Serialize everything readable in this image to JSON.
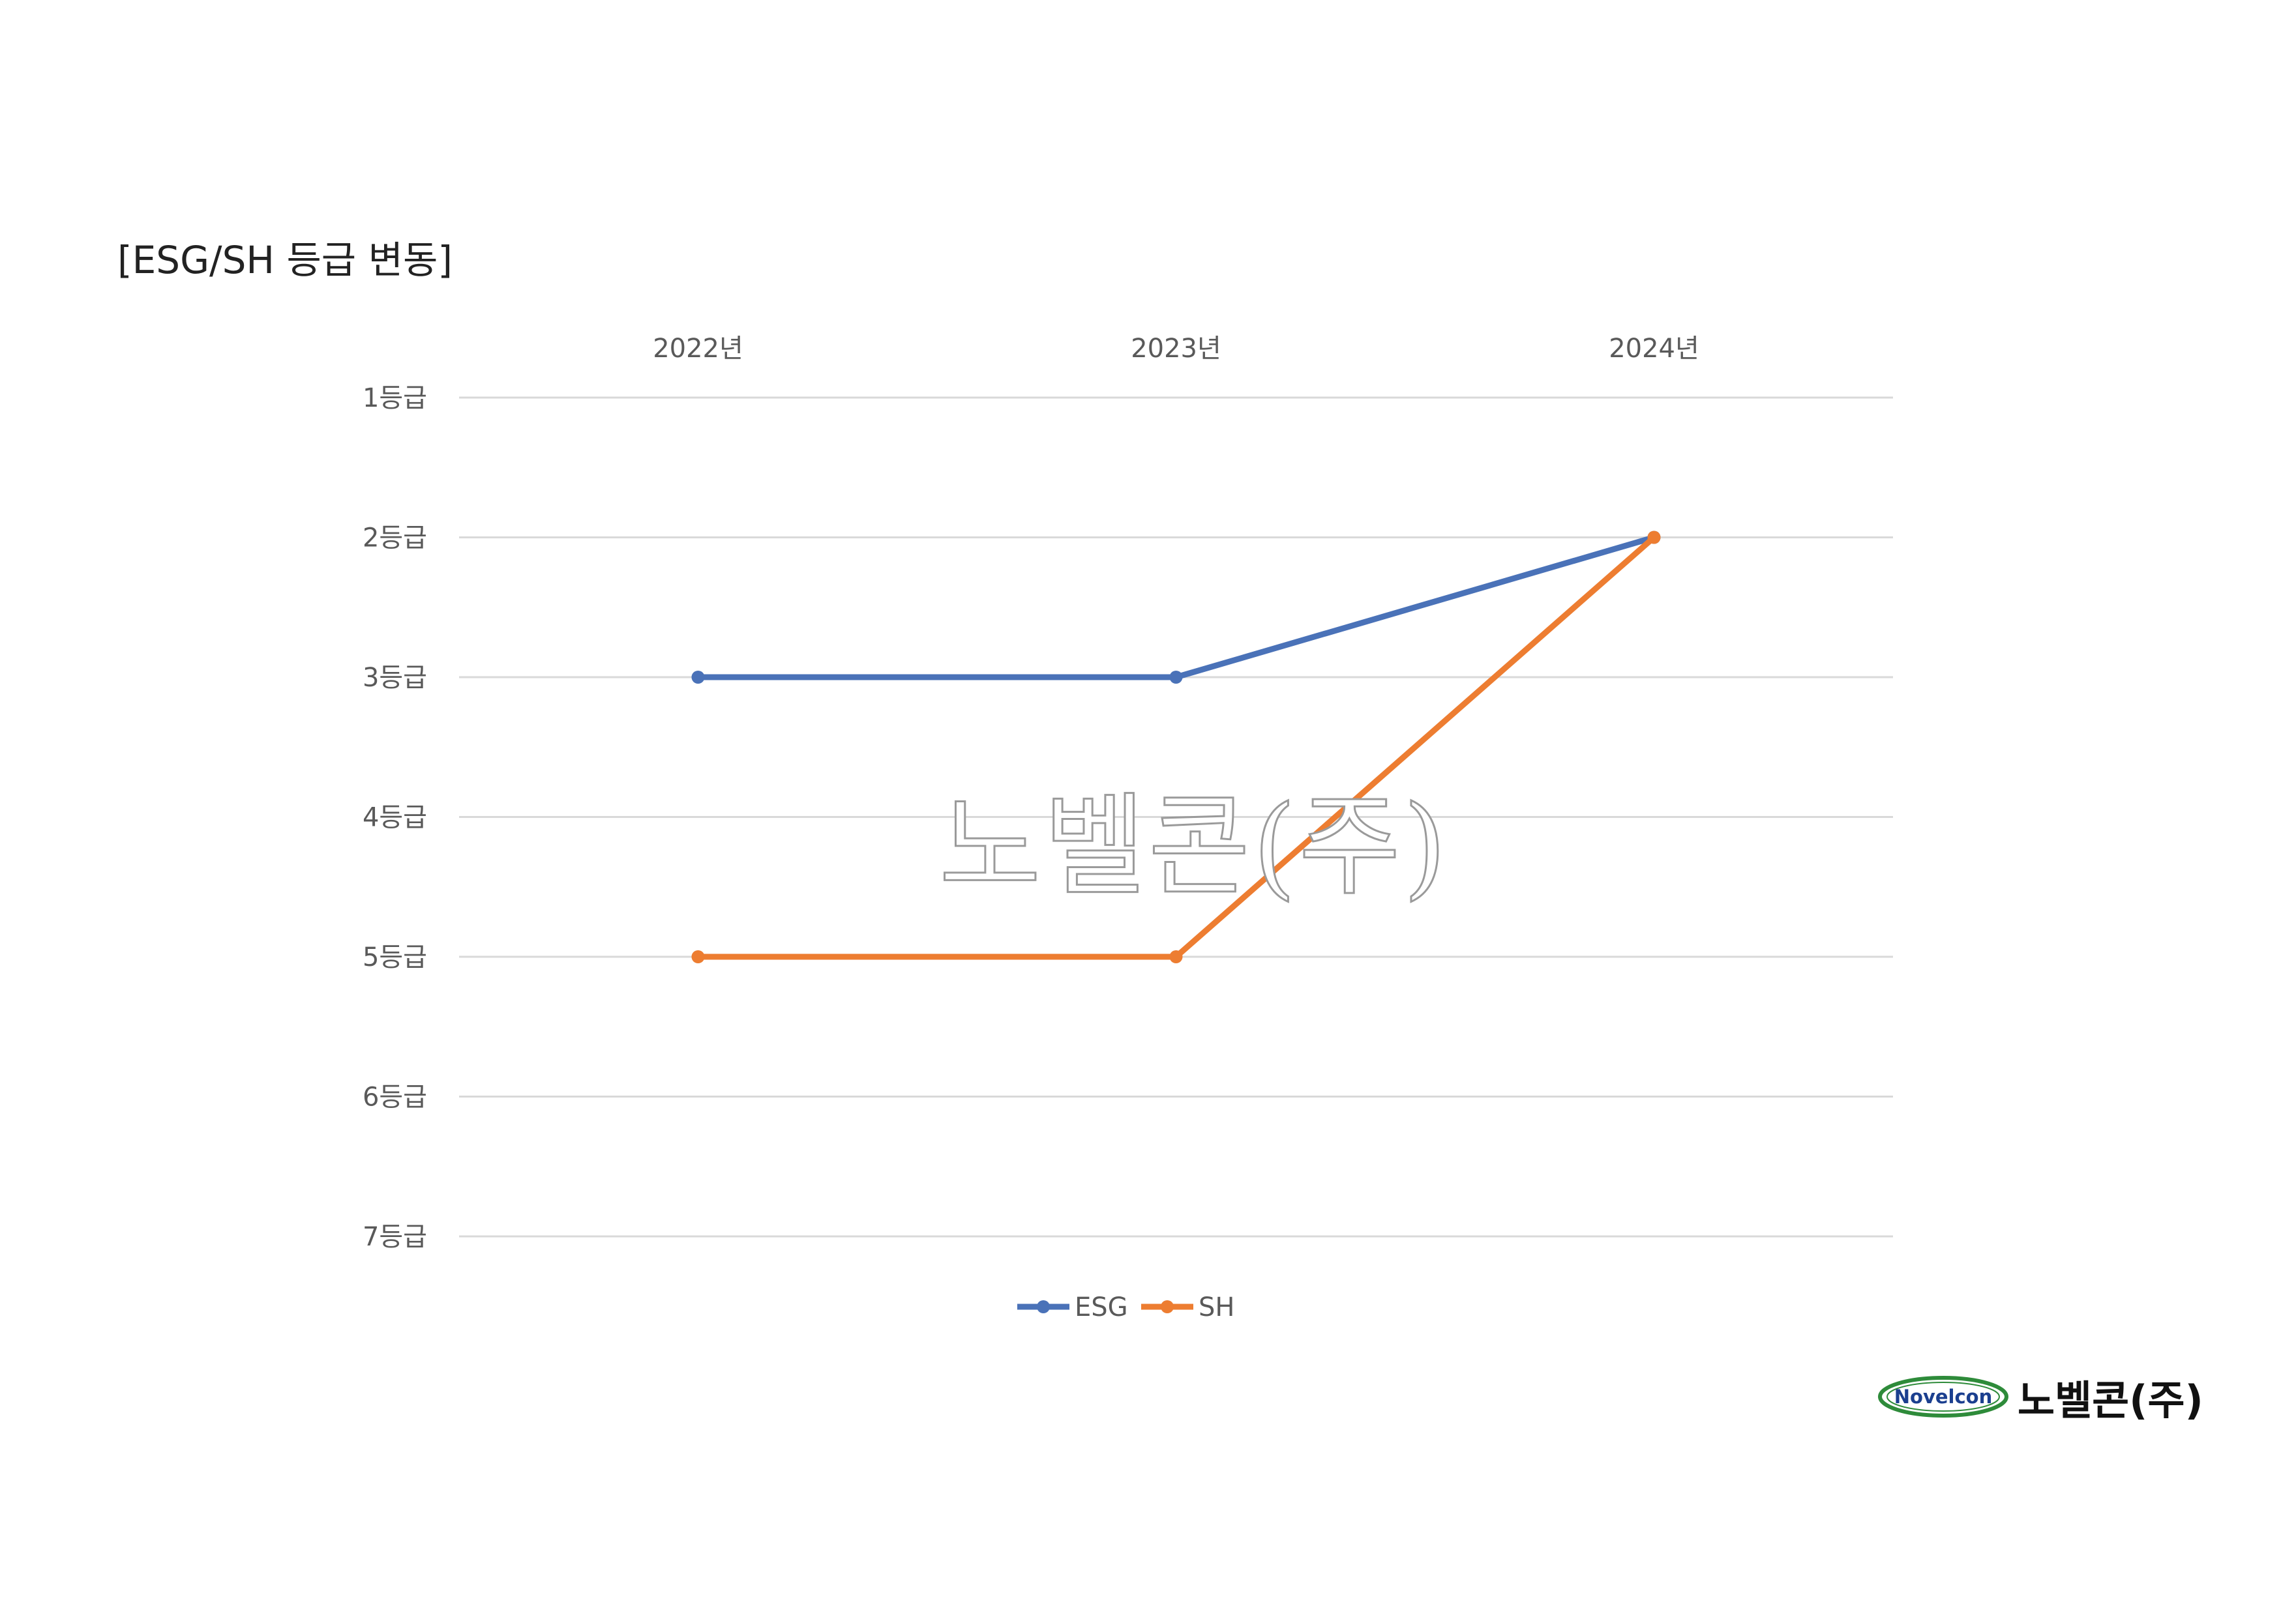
{
  "title": "[ESG/SH 등급 변동]",
  "watermark": "노벨콘(주)",
  "logo": {
    "en": "Novelcon",
    "ko": "노벨콘(주)"
  },
  "chart_data": {
    "type": "line",
    "title": "",
    "x": [
      "2022년",
      "2023년",
      "2024년"
    ],
    "x_axis_position": "top",
    "y_ticks": [
      "1등급",
      "2등급",
      "3등급",
      "4등급",
      "5등급",
      "6등급",
      "7등급"
    ],
    "ylim": [
      1,
      7
    ],
    "y_reversed": true,
    "grid": true,
    "legend": "bottom",
    "series": [
      {
        "name": "ESG",
        "values": [
          3,
          3,
          2
        ],
        "color": "#4a72b8"
      },
      {
        "name": "SH",
        "values": [
          5,
          5,
          2
        ],
        "color": "#ed7d31"
      }
    ]
  }
}
